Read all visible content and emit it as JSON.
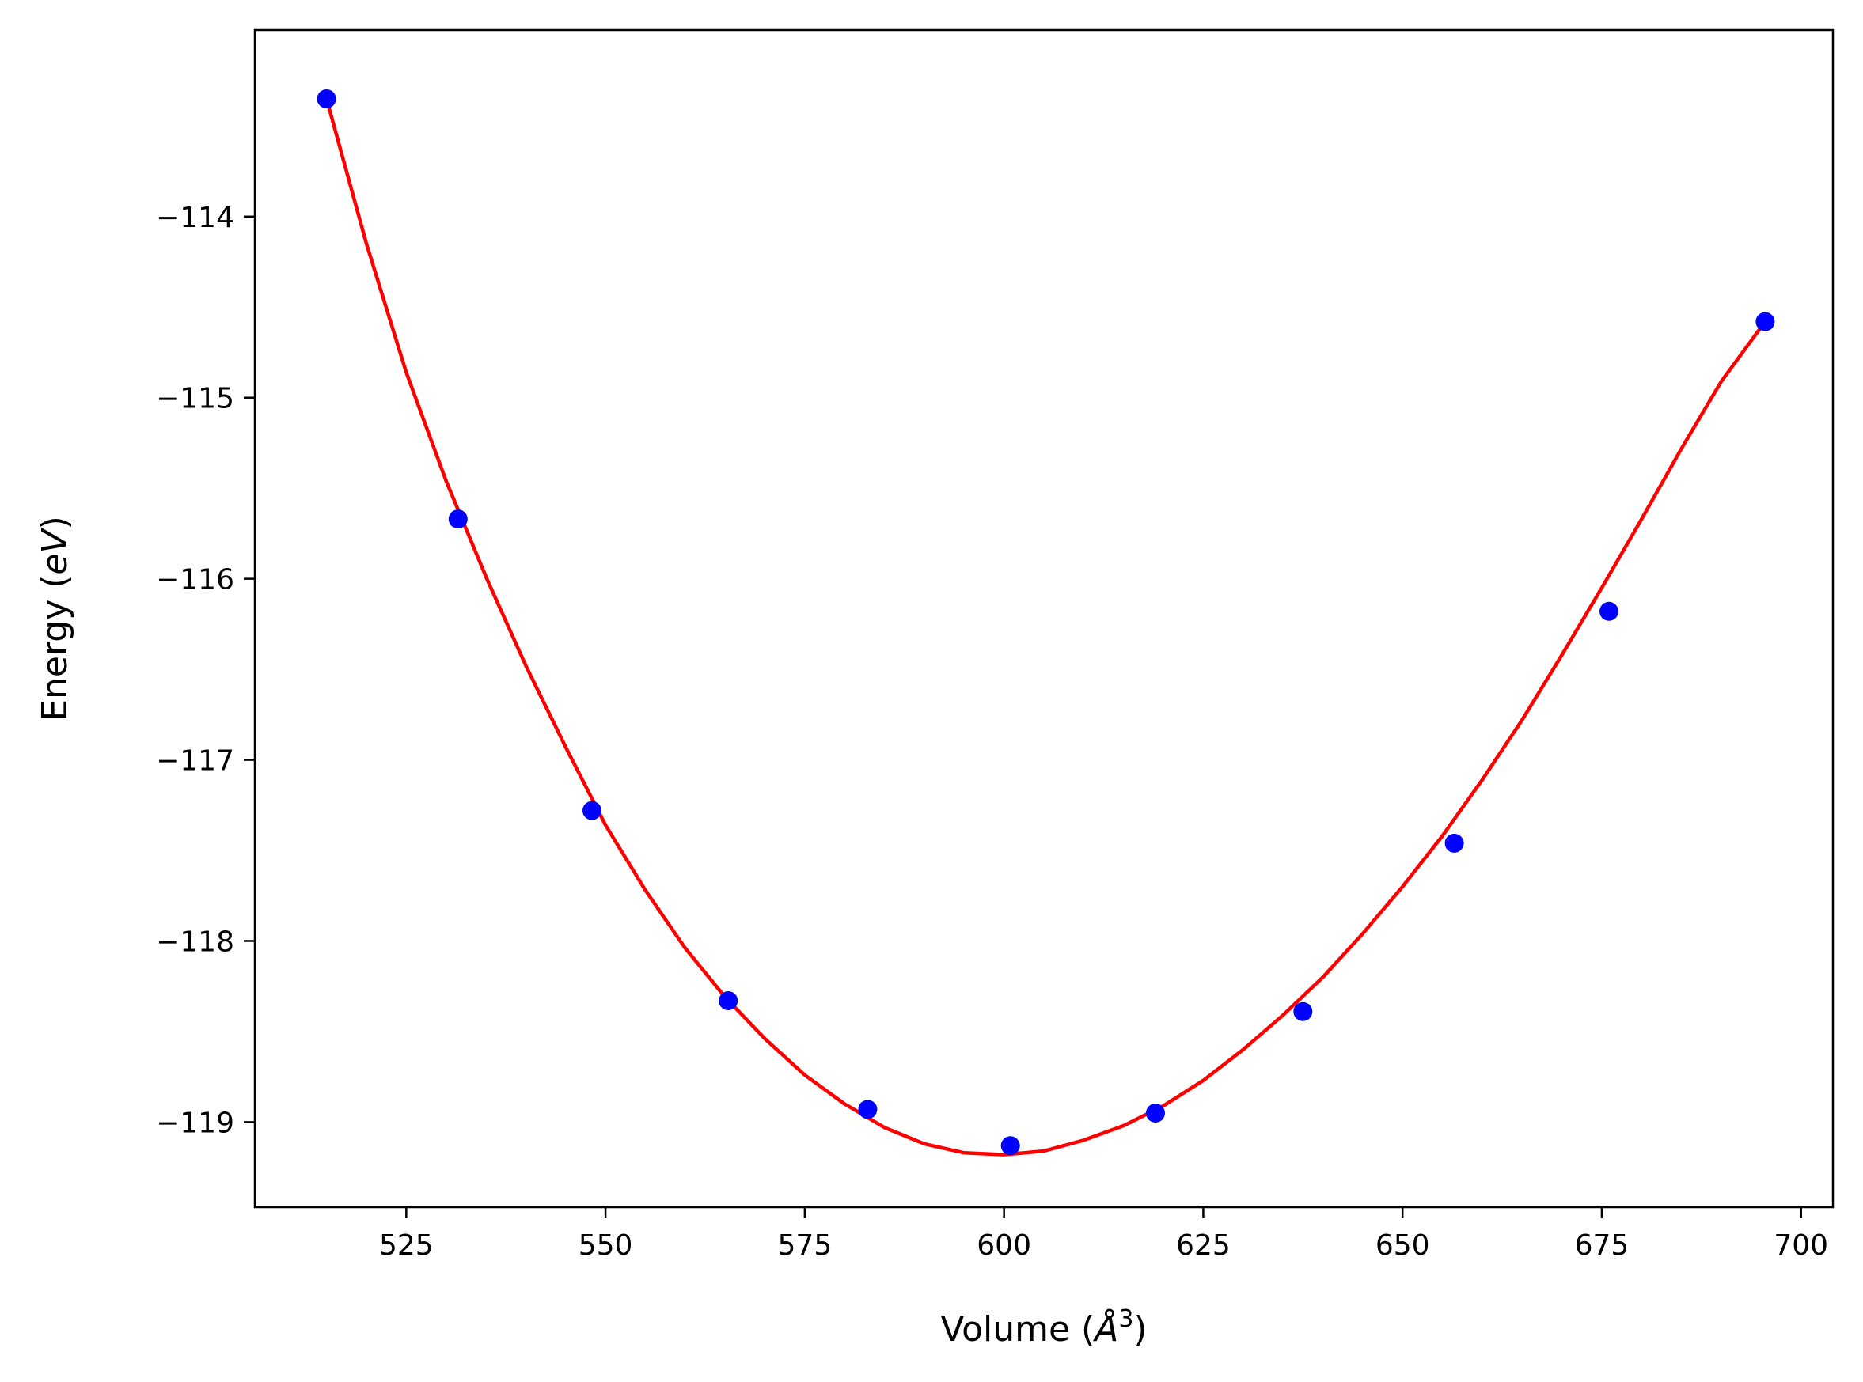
{
  "chart_data": {
    "type": "scatter",
    "xlabel": "Volume",
    "xlabel_unit": "Å",
    "xlabel_unit_power": "3",
    "ylabel": "Energy",
    "ylabel_unit": "eV",
    "xlim": [
      506,
      704
    ],
    "ylim": [
      -119.47,
      -112.97
    ],
    "x_ticks": [
      525,
      550,
      575,
      600,
      625,
      650,
      675,
      700
    ],
    "y_ticks": [
      -119,
      -118,
      -117,
      -116,
      -115,
      -114
    ],
    "x_tick_labels": [
      "525",
      "550",
      "575",
      "600",
      "625",
      "650",
      "675",
      "700"
    ],
    "y_tick_labels": [
      "−119",
      "−118",
      "−117",
      "−116",
      "−115",
      "−114"
    ],
    "grid": false,
    "series": [
      {
        "kind": "points",
        "color": "#0000ff",
        "x": [
          515.0,
          531.5,
          548.3,
          565.4,
          582.9,
          600.8,
          619.0,
          637.5,
          656.5,
          675.9,
          695.5
        ],
        "y": [
          -113.35,
          -115.67,
          -117.28,
          -118.33,
          -118.93,
          -119.13,
          -118.95,
          -118.39,
          -117.46,
          -116.18,
          -114.58
        ]
      },
      {
        "kind": "fit-curve",
        "color": "#ff0000",
        "x": [
          515.0,
          520.0,
          525.0,
          530.0,
          535.0,
          540.0,
          545.0,
          550.0,
          555.0,
          560.0,
          565.0,
          570.0,
          575.0,
          580.0,
          585.0,
          590.0,
          595.0,
          600.0,
          605.0,
          610.0,
          615.0,
          620.0,
          625.0,
          630.0,
          635.0,
          640.0,
          645.0,
          650.0,
          655.0,
          660.0,
          665.0,
          670.0,
          675.0,
          680.0,
          685.0,
          690.0,
          695.5
        ],
        "y": [
          -113.35,
          -114.15,
          -114.86,
          -115.46,
          -115.99,
          -116.48,
          -116.93,
          -117.36,
          -117.72,
          -118.04,
          -118.31,
          -118.54,
          -118.74,
          -118.9,
          -119.03,
          -119.12,
          -119.17,
          -119.18,
          -119.16,
          -119.1,
          -119.02,
          -118.91,
          -118.77,
          -118.6,
          -118.41,
          -118.2,
          -117.96,
          -117.7,
          -117.42,
          -117.11,
          -116.78,
          -116.42,
          -116.05,
          -115.67,
          -115.28,
          -114.91,
          -114.58
        ]
      }
    ]
  }
}
